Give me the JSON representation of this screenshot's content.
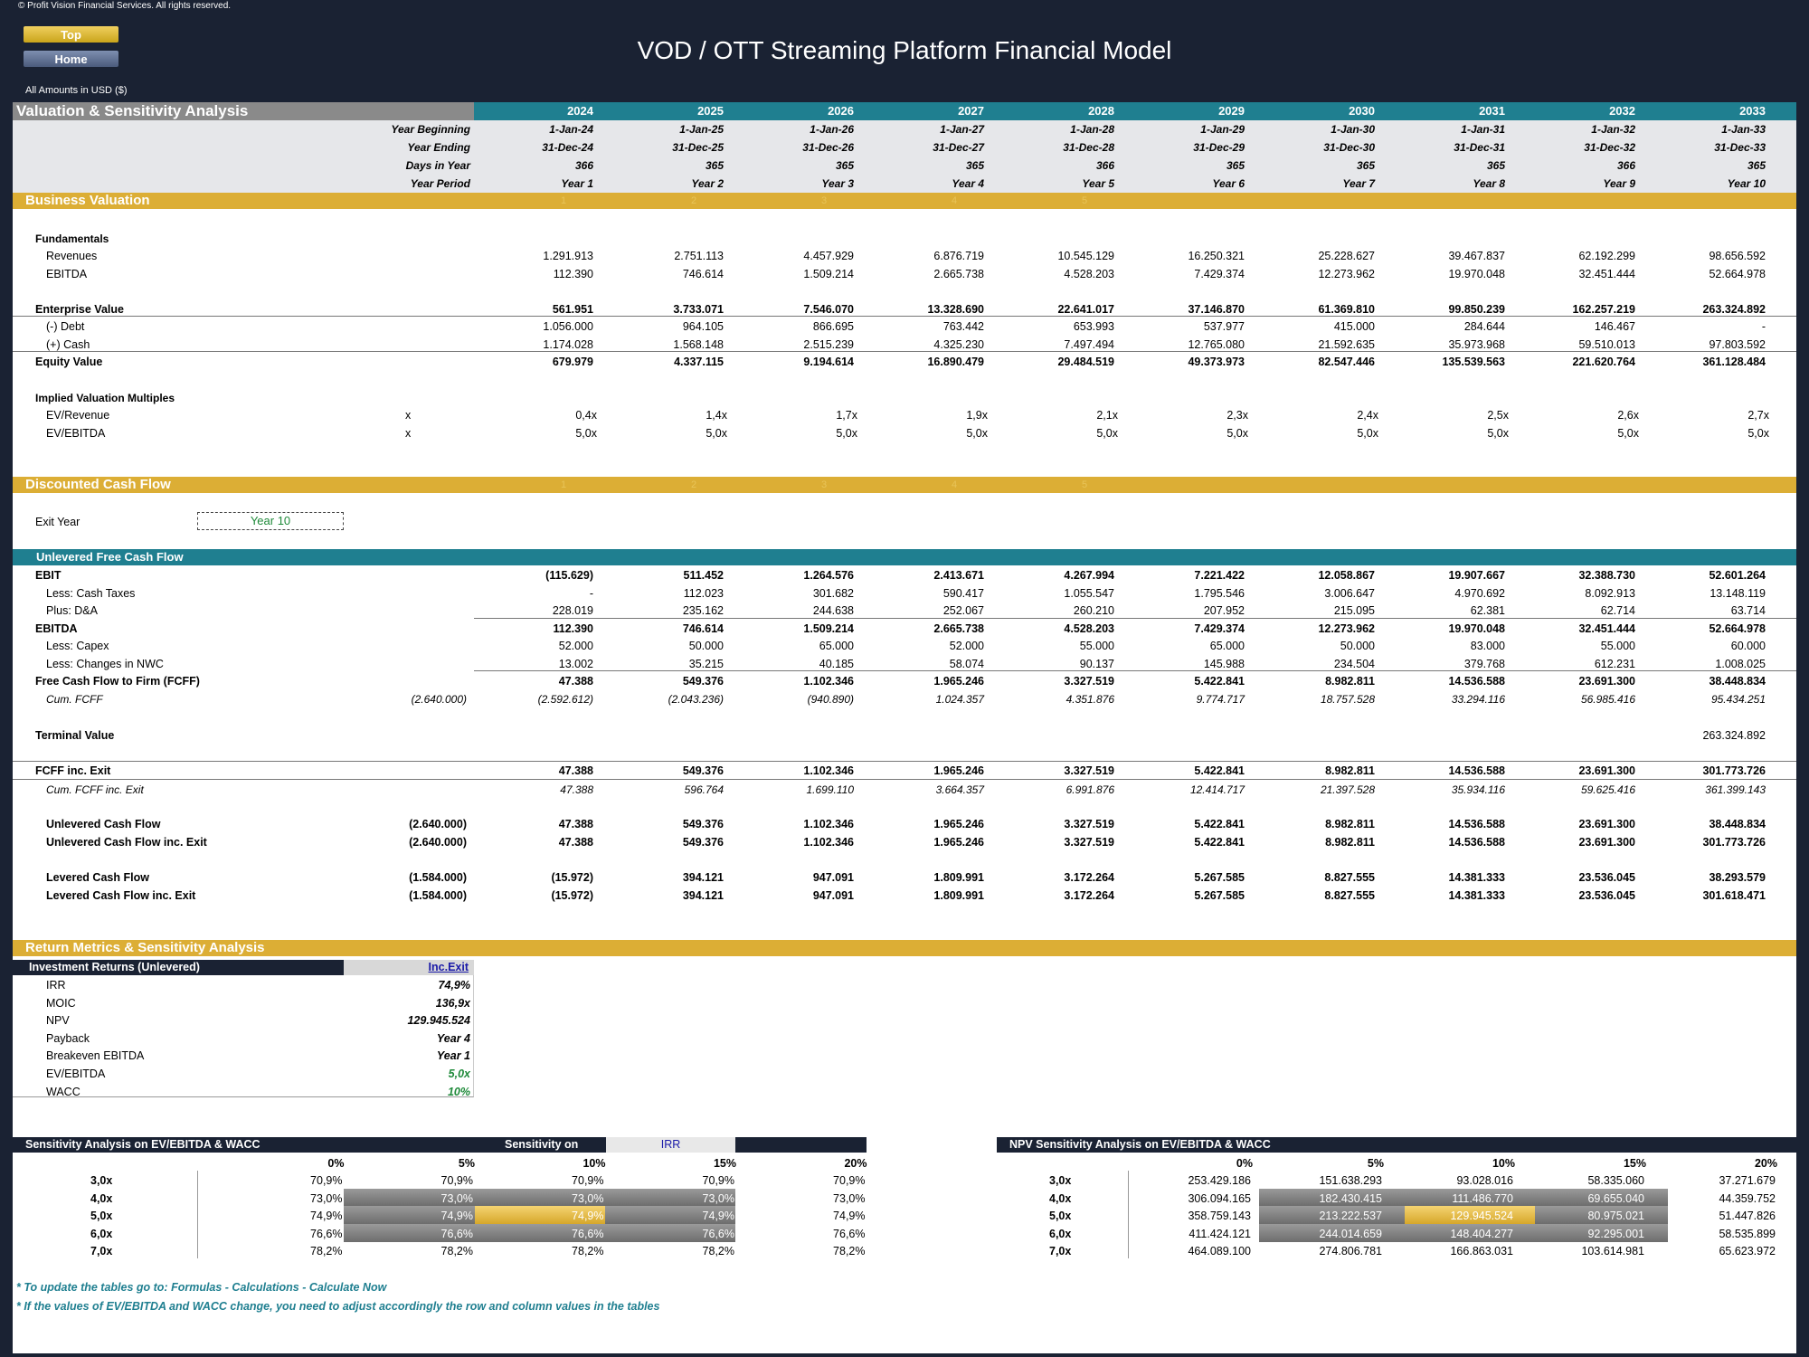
{
  "copyright": "© Profit Vision Financial Services. All rights reserved.",
  "nav": {
    "top": "Top",
    "home": "Home"
  },
  "title": "VOD / OTT Streaming Platform Financial Model",
  "amounts": "All Amounts in  USD ($)",
  "section_title": "Valuation & Sensitivity Analysis",
  "years": [
    "2024",
    "2025",
    "2026",
    "2027",
    "2028",
    "2029",
    "2030",
    "2031",
    "2032",
    "2033"
  ],
  "date_rows": {
    "labels": [
      "Year Beginning",
      "Year Ending",
      "Days in Year",
      "Year Period"
    ],
    "year_beginning": [
      "1-Jan-24",
      "1-Jan-25",
      "1-Jan-26",
      "1-Jan-27",
      "1-Jan-28",
      "1-Jan-29",
      "1-Jan-30",
      "1-Jan-31",
      "1-Jan-32",
      "1-Jan-33"
    ],
    "year_ending": [
      "31-Dec-24",
      "31-Dec-25",
      "31-Dec-26",
      "31-Dec-27",
      "31-Dec-28",
      "31-Dec-29",
      "31-Dec-30",
      "31-Dec-31",
      "31-Dec-32",
      "31-Dec-33"
    ],
    "days": [
      "366",
      "365",
      "365",
      "365",
      "366",
      "365",
      "365",
      "365",
      "366",
      "365"
    ],
    "period": [
      "Year 1",
      "Year 2",
      "Year 3",
      "Year 4",
      "Year 5",
      "Year 6",
      "Year 7",
      "Year 8",
      "Year 9",
      "Year 10"
    ]
  },
  "business_valuation": {
    "title": "Business Valuation",
    "header_nums": [
      "1",
      "2",
      "3",
      "4",
      "5"
    ],
    "fundamentals": "Fundamentals",
    "revenues": {
      "label": "Revenues",
      "values": [
        "1.291.913",
        "2.751.113",
        "4.457.929",
        "6.876.719",
        "10.545.129",
        "16.250.321",
        "25.228.627",
        "39.467.837",
        "62.192.299",
        "98.656.592"
      ]
    },
    "ebitda": {
      "label": "EBITDA",
      "values": [
        "112.390",
        "746.614",
        "1.509.214",
        "2.665.738",
        "4.528.203",
        "7.429.374",
        "12.273.962",
        "19.970.048",
        "32.451.444",
        "52.664.978"
      ]
    },
    "ev": {
      "label": "Enterprise Value",
      "values": [
        "561.951",
        "3.733.071",
        "7.546.070",
        "13.328.690",
        "22.641.017",
        "37.146.870",
        "61.369.810",
        "99.850.239",
        "162.257.219",
        "263.324.892"
      ]
    },
    "debt": {
      "label": "(-) Debt",
      "values": [
        "1.056.000",
        "964.105",
        "866.695",
        "763.442",
        "653.993",
        "537.977",
        "415.000",
        "284.644",
        "146.467",
        "-"
      ]
    },
    "cash": {
      "label": "(+) Cash",
      "values": [
        "1.174.028",
        "1.568.148",
        "2.515.239",
        "4.325.230",
        "7.497.494",
        "12.765.080",
        "21.592.635",
        "35.973.968",
        "59.510.013",
        "97.803.592"
      ]
    },
    "equity": {
      "label": "Equity Value",
      "values": [
        "679.979",
        "4.337.115",
        "9.194.614",
        "16.890.479",
        "29.484.519",
        "49.373.973",
        "82.547.446",
        "135.539.563",
        "221.620.764",
        "361.128.484"
      ]
    },
    "multiples_title": "Implied Valuation Multiples",
    "ev_rev": {
      "label": "EV/Revenue",
      "unit": "x",
      "values": [
        "0,4x",
        "1,4x",
        "1,7x",
        "1,9x",
        "2,1x",
        "2,3x",
        "2,4x",
        "2,5x",
        "2,6x",
        "2,7x"
      ]
    },
    "ev_ebitda": {
      "label": "EV/EBITDA",
      "unit": "x",
      "values": [
        "5,0x",
        "5,0x",
        "5,0x",
        "5,0x",
        "5,0x",
        "5,0x",
        "5,0x",
        "5,0x",
        "5,0x",
        "5,0x"
      ]
    }
  },
  "dcf": {
    "title": "Discounted Cash Flow",
    "header_nums": [
      "1",
      "2",
      "3",
      "4",
      "5"
    ],
    "exit_year_label": "Exit Year",
    "exit_year_value": "Year 10",
    "ufcf_title": "Unlevered Free Cash Flow",
    "ebit": {
      "label": "EBIT",
      "values": [
        "(115.629)",
        "511.452",
        "1.264.576",
        "2.413.671",
        "4.267.994",
        "7.221.422",
        "12.058.867",
        "19.907.667",
        "32.388.730",
        "52.601.264"
      ]
    },
    "taxes": {
      "label": "Less: Cash Taxes",
      "values": [
        "-",
        "112.023",
        "301.682",
        "590.417",
        "1.055.547",
        "1.795.546",
        "3.006.647",
        "4.970.692",
        "8.092.913",
        "13.148.119"
      ]
    },
    "da": {
      "label": "Plus: D&A",
      "values": [
        "228.019",
        "235.162",
        "244.638",
        "252.067",
        "260.210",
        "207.952",
        "215.095",
        "62.381",
        "62.714",
        "63.714"
      ]
    },
    "ebitda": {
      "label": "EBITDA",
      "values": [
        "112.390",
        "746.614",
        "1.509.214",
        "2.665.738",
        "4.528.203",
        "7.429.374",
        "12.273.962",
        "19.970.048",
        "32.451.444",
        "52.664.978"
      ]
    },
    "capex": {
      "label": "Less: Capex",
      "values": [
        "52.000",
        "50.000",
        "65.000",
        "52.000",
        "55.000",
        "65.000",
        "50.000",
        "83.000",
        "55.000",
        "60.000"
      ]
    },
    "nwc": {
      "label": "Less: Changes in NWC",
      "values": [
        "13.002",
        "35.215",
        "40.185",
        "58.074",
        "90.137",
        "145.988",
        "234.504",
        "379.768",
        "612.231",
        "1.008.025"
      ]
    },
    "fcff": {
      "label": "Free Cash Flow to Firm (FCFF)",
      "values": [
        "47.388",
        "549.376",
        "1.102.346",
        "1.965.246",
        "3.327.519",
        "5.422.841",
        "8.982.811",
        "14.536.588",
        "23.691.300",
        "38.448.834"
      ]
    },
    "cum_fcff": {
      "label": "Cum. FCFF",
      "initial": "(2.640.000)",
      "values": [
        "(2.592.612)",
        "(2.043.236)",
        "(940.890)",
        "1.024.357",
        "4.351.876",
        "9.774.717",
        "18.757.528",
        "33.294.116",
        "56.985.416",
        "95.434.251"
      ]
    },
    "terminal": {
      "label": "Terminal Value",
      "value": "263.324.892"
    },
    "fcff_exit": {
      "label": "FCFF inc. Exit",
      "values": [
        "47.388",
        "549.376",
        "1.102.346",
        "1.965.246",
        "3.327.519",
        "5.422.841",
        "8.982.811",
        "14.536.588",
        "23.691.300",
        "301.773.726"
      ]
    },
    "cum_fcff_exit": {
      "label": "Cum. FCFF inc. Exit",
      "values": [
        "47.388",
        "596.764",
        "1.699.110",
        "3.664.357",
        "6.991.876",
        "12.414.717",
        "21.397.528",
        "35.934.116",
        "59.625.416",
        "361.399.143"
      ]
    },
    "ucf": {
      "label": "Unlevered Cash Flow",
      "initial": "(2.640.000)",
      "values": [
        "47.388",
        "549.376",
        "1.102.346",
        "1.965.246",
        "3.327.519",
        "5.422.841",
        "8.982.811",
        "14.536.588",
        "23.691.300",
        "38.448.834"
      ]
    },
    "ucf_exit": {
      "label": "Unlevered Cash Flow inc. Exit",
      "initial": "(2.640.000)",
      "values": [
        "47.388",
        "549.376",
        "1.102.346",
        "1.965.246",
        "3.327.519",
        "5.422.841",
        "8.982.811",
        "14.536.588",
        "23.691.300",
        "301.773.726"
      ]
    },
    "lcf": {
      "label": "Levered Cash Flow",
      "initial": "(1.584.000)",
      "values": [
        "(15.972)",
        "394.121",
        "947.091",
        "1.809.991",
        "3.172.264",
        "5.267.585",
        "8.827.555",
        "14.381.333",
        "23.536.045",
        "38.293.579"
      ]
    },
    "lcf_exit": {
      "label": "Levered Cash Flow inc. Exit",
      "initial": "(1.584.000)",
      "values": [
        "(15.972)",
        "394.121",
        "947.091",
        "1.809.991",
        "3.172.264",
        "5.267.585",
        "8.827.555",
        "14.381.333",
        "23.536.045",
        "301.618.471"
      ]
    }
  },
  "returns": {
    "title": "Return Metrics & Sensitivity Analysis",
    "box_title": "Investment Returns (Unlevered)",
    "col_header": "Inc.Exit",
    "rows": [
      {
        "label": "IRR",
        "value": "74,9%"
      },
      {
        "label": "MOIC",
        "value": "136,9x"
      },
      {
        "label": "NPV",
        "value": "129.945.524"
      },
      {
        "label": "Payback",
        "value": "Year 4"
      },
      {
        "label": "Breakeven EBITDA",
        "value": "Year 1"
      },
      {
        "label": "EV/EBITDA",
        "value": "5,0x"
      },
      {
        "label": "WACC",
        "value": "10%"
      }
    ]
  },
  "sens_irr": {
    "title": "Sensitivity Analysis on EV/EBITDA & WACC",
    "sens_on_label": "Sensitivity on",
    "sens_on_value": "IRR",
    "cols": [
      "0%",
      "5%",
      "10%",
      "15%",
      "20%"
    ],
    "rows": [
      {
        "label": "3,0x",
        "values": [
          "70,9%",
          "70,9%",
          "70,9%",
          "70,9%",
          "70,9%"
        ]
      },
      {
        "label": "4,0x",
        "values": [
          "73,0%",
          "73,0%",
          "73,0%",
          "73,0%",
          "73,0%"
        ]
      },
      {
        "label": "5,0x",
        "values": [
          "74,9%",
          "74,9%",
          "74,9%",
          "74,9%",
          "74,9%"
        ]
      },
      {
        "label": "6,0x",
        "values": [
          "76,6%",
          "76,6%",
          "76,6%",
          "76,6%",
          "76,6%"
        ]
      },
      {
        "label": "7,0x",
        "values": [
          "78,2%",
          "78,2%",
          "78,2%",
          "78,2%",
          "78,2%"
        ]
      }
    ]
  },
  "sens_npv": {
    "title": "NPV Sensitivity Analysis on EV/EBITDA & WACC",
    "cols": [
      "0%",
      "5%",
      "10%",
      "15%",
      "20%"
    ],
    "rows": [
      {
        "label": "3,0x",
        "values": [
          "253.429.186",
          "151.638.293",
          "93.028.016",
          "58.335.060",
          "37.271.679"
        ]
      },
      {
        "label": "4,0x",
        "values": [
          "306.094.165",
          "182.430.415",
          "111.486.770",
          "69.655.040",
          "44.359.752"
        ]
      },
      {
        "label": "5,0x",
        "values": [
          "358.759.143",
          "213.222.537",
          "129.945.524",
          "80.975.021",
          "51.447.826"
        ]
      },
      {
        "label": "6,0x",
        "values": [
          "411.424.121",
          "244.014.659",
          "148.404.277",
          "92.295.001",
          "58.535.899"
        ]
      },
      {
        "label": "7,0x",
        "values": [
          "464.089.100",
          "274.806.781",
          "166.863.031",
          "103.614.981",
          "65.623.972"
        ]
      }
    ]
  },
  "notes": [
    "* To update the tables go to: Formulas - Calculations - Calculate Now",
    "* If the values of EV/EBITDA and WACC change, you need to adjust accordingly the row and column values in the tables"
  ],
  "colors": {
    "navy": "#1a2233",
    "teal": "#1f7f90",
    "gold": "#dcae35",
    "gray_header": "#8a8a8a",
    "green": "#1f8a3a",
    "blue": "#1a1aa8"
  }
}
